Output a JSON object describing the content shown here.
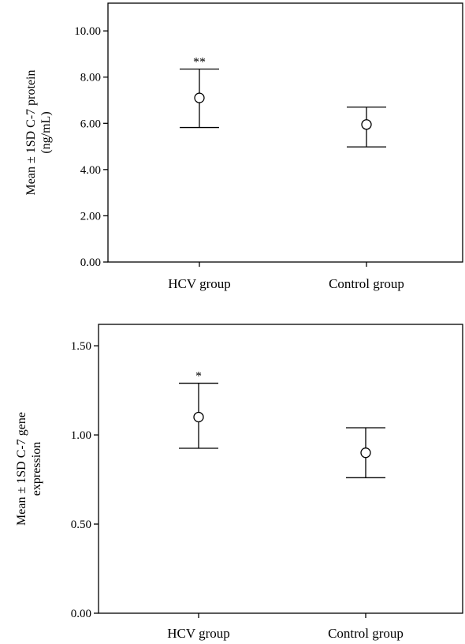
{
  "chart_data": [
    {
      "type": "errorbar",
      "title": "",
      "xlabel": "",
      "ylabel": [
        "Mean ± 1SD C-7 protein",
        "(ng/mL)"
      ],
      "ylim": [
        0,
        11.2
      ],
      "yticks": [
        0,
        2,
        4,
        6,
        8,
        10
      ],
      "ytick_labels": [
        "0.00",
        "2.00",
        "4.00",
        "6.00",
        "8.00",
        "10.00"
      ],
      "categories": [
        "HCV group",
        "Control group"
      ],
      "mean": [
        7.1,
        5.95
      ],
      "upper": [
        8.35,
        6.7
      ],
      "lower": [
        5.82,
        4.98
      ],
      "annotations": [
        "**",
        ""
      ],
      "grid": false
    },
    {
      "type": "errorbar",
      "title": "",
      "xlabel": "",
      "ylabel": [
        "Mean ± 1SD C-7 gene",
        "expression"
      ],
      "ylim": [
        0,
        1.62
      ],
      "yticks": [
        0,
        0.5,
        1.0,
        1.5
      ],
      "ytick_labels": [
        "0.00",
        "0.50",
        "1.00",
        "1.50"
      ],
      "categories": [
        "HCV group",
        "Control group"
      ],
      "mean": [
        1.1,
        0.9
      ],
      "upper": [
        1.29,
        1.04
      ],
      "lower": [
        0.925,
        0.76
      ],
      "annotations": [
        "*",
        ""
      ],
      "grid": false
    }
  ]
}
